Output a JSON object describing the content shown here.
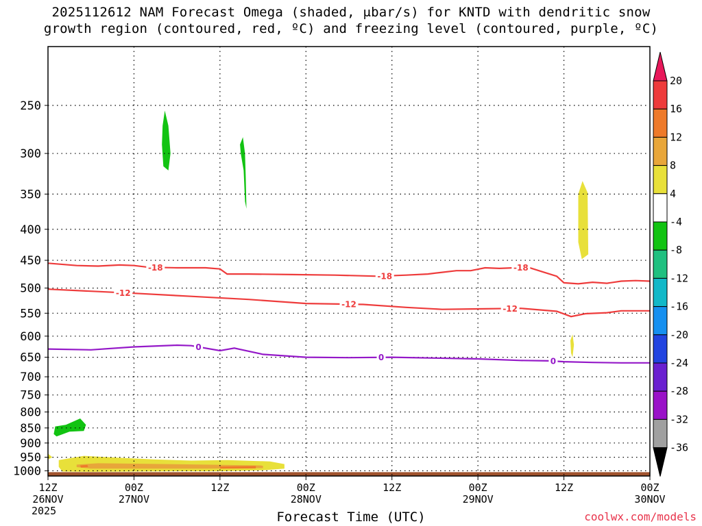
{
  "title": {
    "line1": "2025112612 NAM Forecast Omega (shaded, μbar/s) for KNTD with dendritic snow",
    "line2": "growth region (contoured, red, ºC) and freezing level (contoured, purple, ºC)"
  },
  "credit": "coolwx.com/models",
  "chart_data": {
    "type": "contour",
    "title": "2025112612 NAM Forecast Omega (shaded, μbar/s) for KNTD with dendritic snow growth region (contoured, red, ºC) and freezing level (contoured, purple, ºC)",
    "xlabel": "Forecast Time (UTC)",
    "ylabel": "",
    "y_log_scale": true,
    "y_inverted": true,
    "ylim": [
      1020,
      200
    ],
    "y_ticks": [
      250,
      300,
      350,
      400,
      450,
      500,
      550,
      600,
      650,
      700,
      750,
      800,
      850,
      900,
      950,
      1000
    ],
    "xlim": [
      0,
      84
    ],
    "x_ticks": [
      {
        "h": 0,
        "lines": [
          "12Z",
          "26NOV",
          "2025"
        ]
      },
      {
        "h": 12,
        "lines": [
          "00Z",
          "27NOV"
        ]
      },
      {
        "h": 24,
        "lines": [
          "12Z"
        ]
      },
      {
        "h": 36,
        "lines": [
          "00Z",
          "28NOV"
        ]
      },
      {
        "h": 48,
        "lines": [
          "12Z"
        ]
      },
      {
        "h": 60,
        "lines": [
          "00Z",
          "29NOV"
        ]
      },
      {
        "h": 72,
        "lines": [
          "12Z"
        ]
      },
      {
        "h": 84,
        "lines": [
          "00Z",
          "30NOV"
        ]
      }
    ],
    "grid": true,
    "colorbar": {
      "labels": [
        "20",
        "16",
        "12",
        "8",
        "4",
        "-4",
        "-8",
        "-12",
        "-16",
        "-20",
        "-24",
        "-28",
        "-32",
        "-36"
      ],
      "colors": [
        "#e8185a",
        "#ee3b3b",
        "#ee7a2a",
        "#e8a63a",
        "#e8e03a",
        "#ffffff",
        "#12c312",
        "#20c080",
        "#12b8c8",
        "#1690f0",
        "#2244e0",
        "#6a20d0",
        "#9a12c8",
        "#a0a0a0",
        "#000000"
      ]
    },
    "series": [
      {
        "name": "-18",
        "color": "#ee3b3b",
        "label_at": [
          15,
          47,
          66
        ],
        "points": [
          [
            0,
            455
          ],
          [
            4,
            459
          ],
          [
            7,
            460
          ],
          [
            10,
            458
          ],
          [
            12,
            459
          ],
          [
            14,
            462
          ],
          [
            18,
            463
          ],
          [
            22,
            463
          ],
          [
            24,
            465
          ],
          [
            25,
            474
          ],
          [
            28,
            474
          ],
          [
            34,
            475
          ],
          [
            40,
            476
          ],
          [
            46,
            478
          ],
          [
            50,
            476
          ],
          [
            53,
            474
          ],
          [
            55,
            471
          ],
          [
            57,
            468
          ],
          [
            59,
            468
          ],
          [
            61,
            463
          ],
          [
            63,
            464
          ],
          [
            67,
            462
          ],
          [
            69,
            470
          ],
          [
            71,
            478
          ],
          [
            72,
            490
          ],
          [
            74,
            492
          ],
          [
            76,
            489
          ],
          [
            78,
            491
          ],
          [
            80,
            487
          ],
          [
            82,
            486
          ],
          [
            84,
            487
          ]
        ]
      },
      {
        "name": "-12",
        "color": "#ee3b3b",
        "label_at": [
          10.5,
          42,
          64.5
        ],
        "points": [
          [
            0,
            502
          ],
          [
            6,
            506
          ],
          [
            12,
            510
          ],
          [
            20,
            516
          ],
          [
            28,
            522
          ],
          [
            36,
            530
          ],
          [
            44,
            532
          ],
          [
            50,
            538
          ],
          [
            55,
            542
          ],
          [
            60,
            541
          ],
          [
            66,
            540
          ],
          [
            71,
            546
          ],
          [
            73,
            557
          ],
          [
            75,
            551
          ],
          [
            78,
            549
          ],
          [
            80,
            545
          ],
          [
            84,
            545
          ]
        ]
      },
      {
        "name": "0",
        "color": "#9418c8",
        "label_at": [
          21,
          46.5,
          70.5
        ],
        "points": [
          [
            0,
            630
          ],
          [
            6,
            632
          ],
          [
            12,
            625
          ],
          [
            18,
            621
          ],
          [
            20,
            622
          ],
          [
            24,
            634
          ],
          [
            26,
            628
          ],
          [
            30,
            643
          ],
          [
            36,
            650
          ],
          [
            42,
            651
          ],
          [
            48,
            650
          ],
          [
            54,
            652
          ],
          [
            60,
            654
          ],
          [
            66,
            658
          ],
          [
            70,
            659
          ],
          [
            72,
            661
          ],
          [
            76,
            663
          ],
          [
            80,
            664
          ],
          [
            84,
            664
          ]
        ]
      }
    ],
    "shaded_regions": [
      {
        "omega": "-8",
        "color": "#12c312",
        "points": [
          [
            16.3,
            255
          ],
          [
            16.8,
            270
          ],
          [
            17.1,
            300
          ],
          [
            16.8,
            320
          ],
          [
            16.1,
            315
          ],
          [
            15.9,
            290
          ],
          [
            16.0,
            270
          ]
        ]
      },
      {
        "omega": "-8",
        "color": "#12c312",
        "points": [
          [
            27.2,
            282
          ],
          [
            27.5,
            300
          ],
          [
            27.6,
            330
          ],
          [
            27.7,
            370
          ],
          [
            27.5,
            360
          ],
          [
            27.3,
            320
          ],
          [
            26.9,
            300
          ],
          [
            26.8,
            290
          ]
        ]
      },
      {
        "omega": "-8",
        "color": "#12c312",
        "points": [
          [
            1.0,
            845
          ],
          [
            2.5,
            840
          ],
          [
            4.5,
            820
          ],
          [
            5.3,
            840
          ],
          [
            5.0,
            860
          ],
          [
            3.0,
            862
          ],
          [
            1.2,
            878
          ],
          [
            0.8,
            870
          ]
        ]
      },
      {
        "omega": "4",
        "color": "#e8e03a",
        "points": [
          [
            74.6,
            333
          ],
          [
            75.3,
            348
          ],
          [
            75.4,
            440
          ],
          [
            74.5,
            448
          ],
          [
            74.0,
            420
          ],
          [
            74.0,
            350
          ]
        ]
      },
      {
        "omega": "4",
        "color": "#e8e03a",
        "points": [
          [
            73.2,
            596
          ],
          [
            73.4,
            620
          ],
          [
            73.2,
            650
          ],
          [
            73.0,
            640
          ],
          [
            72.9,
            610
          ]
        ]
      },
      {
        "omega": "4",
        "color": "#e8e03a",
        "points": [
          [
            0,
            937
          ],
          [
            0.6,
            950
          ],
          [
            0,
            958
          ]
        ]
      },
      {
        "omega": "4",
        "color": "#e8e03a",
        "points": [
          [
            1.5,
            960
          ],
          [
            5,
            945
          ],
          [
            10,
            952
          ],
          [
            15,
            958
          ],
          [
            20,
            962
          ],
          [
            25,
            960
          ],
          [
            31,
            965
          ],
          [
            33,
            975
          ],
          [
            33,
            992
          ],
          [
            30,
            998
          ],
          [
            24,
            1002
          ],
          [
            18,
            1002
          ],
          [
            12,
            1003
          ],
          [
            6,
            1004
          ],
          [
            2,
            1003
          ],
          [
            1.5,
            985
          ]
        ]
      },
      {
        "omega": "8",
        "color": "#e8a63a",
        "points": [
          [
            4,
            977
          ],
          [
            7,
            972
          ],
          [
            14,
            974
          ],
          [
            22,
            977
          ],
          [
            30,
            980
          ],
          [
            30,
            990
          ],
          [
            22,
            992
          ],
          [
            14,
            992
          ],
          [
            6,
            992
          ],
          [
            4,
            986
          ]
        ]
      },
      {
        "omega": "12",
        "color": "#ee7a2a",
        "points": [
          [
            4.5,
            980
          ],
          [
            5.5,
            978
          ],
          [
            5.6,
            986
          ],
          [
            4.6,
            988
          ]
        ]
      },
      {
        "omega": "12",
        "color": "#ee7a2a",
        "points": [
          [
            24,
            984
          ],
          [
            29,
            982
          ],
          [
            29,
            991
          ],
          [
            24,
            992
          ]
        ]
      }
    ],
    "terrain": {
      "color": "#a0522d"
    }
  }
}
